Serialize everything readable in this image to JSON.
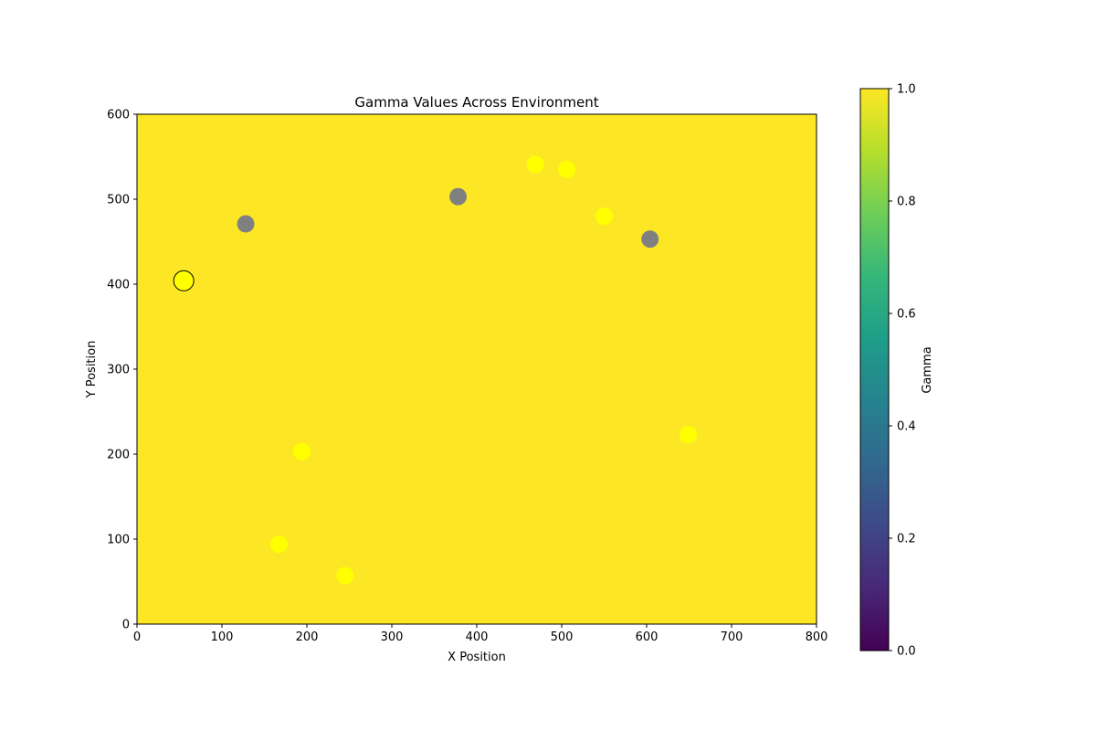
{
  "chart_data": {
    "type": "scatter",
    "title": "Gamma Values Across Environment",
    "xlabel": "X Position",
    "ylabel": "Y Position",
    "xlim": [
      0,
      800
    ],
    "ylim": [
      0,
      600
    ],
    "xticks": [
      "0",
      "100",
      "200",
      "300",
      "400",
      "500",
      "600",
      "700",
      "800"
    ],
    "yticks": [
      "0",
      "100",
      "200",
      "300",
      "400",
      "500",
      "600"
    ],
    "background_gamma": 1.0,
    "points": [
      {
        "x": 128,
        "y": 471,
        "kind": "gray",
        "color": "#808080"
      },
      {
        "x": 378,
        "y": 503,
        "kind": "gray",
        "color": "#808080"
      },
      {
        "x": 604,
        "y": 453,
        "kind": "gray",
        "color": "#808080"
      },
      {
        "x": 469,
        "y": 541,
        "kind": "yellow",
        "color": "#ffff00"
      },
      {
        "x": 506,
        "y": 535,
        "kind": "yellow",
        "color": "#ffff00"
      },
      {
        "x": 550,
        "y": 480,
        "kind": "yellow",
        "color": "#ffff00"
      },
      {
        "x": 649,
        "y": 223,
        "kind": "yellow",
        "color": "#ffff00"
      },
      {
        "x": 194,
        "y": 203,
        "kind": "yellow",
        "color": "#ffff00"
      },
      {
        "x": 167,
        "y": 94,
        "kind": "yellow",
        "color": "#ffff00"
      },
      {
        "x": 245,
        "y": 57,
        "kind": "yellow",
        "color": "#ffff00"
      },
      {
        "x": 55,
        "y": 404,
        "kind": "agent",
        "color": "#ffff00",
        "outline": "#000000"
      }
    ],
    "colorbar": {
      "label": "Gamma",
      "range": [
        0.0,
        1.0
      ],
      "ticks": [
        "0.0",
        "0.2",
        "0.4",
        "0.6",
        "0.8",
        "1.0"
      ],
      "colormap": "viridis",
      "stops": [
        "#440154",
        "#482878",
        "#3e4989",
        "#31688e",
        "#26828e",
        "#1f9e89",
        "#35b779",
        "#6ece58",
        "#b5de2b",
        "#fde725"
      ]
    },
    "background_color": "#fde725"
  }
}
